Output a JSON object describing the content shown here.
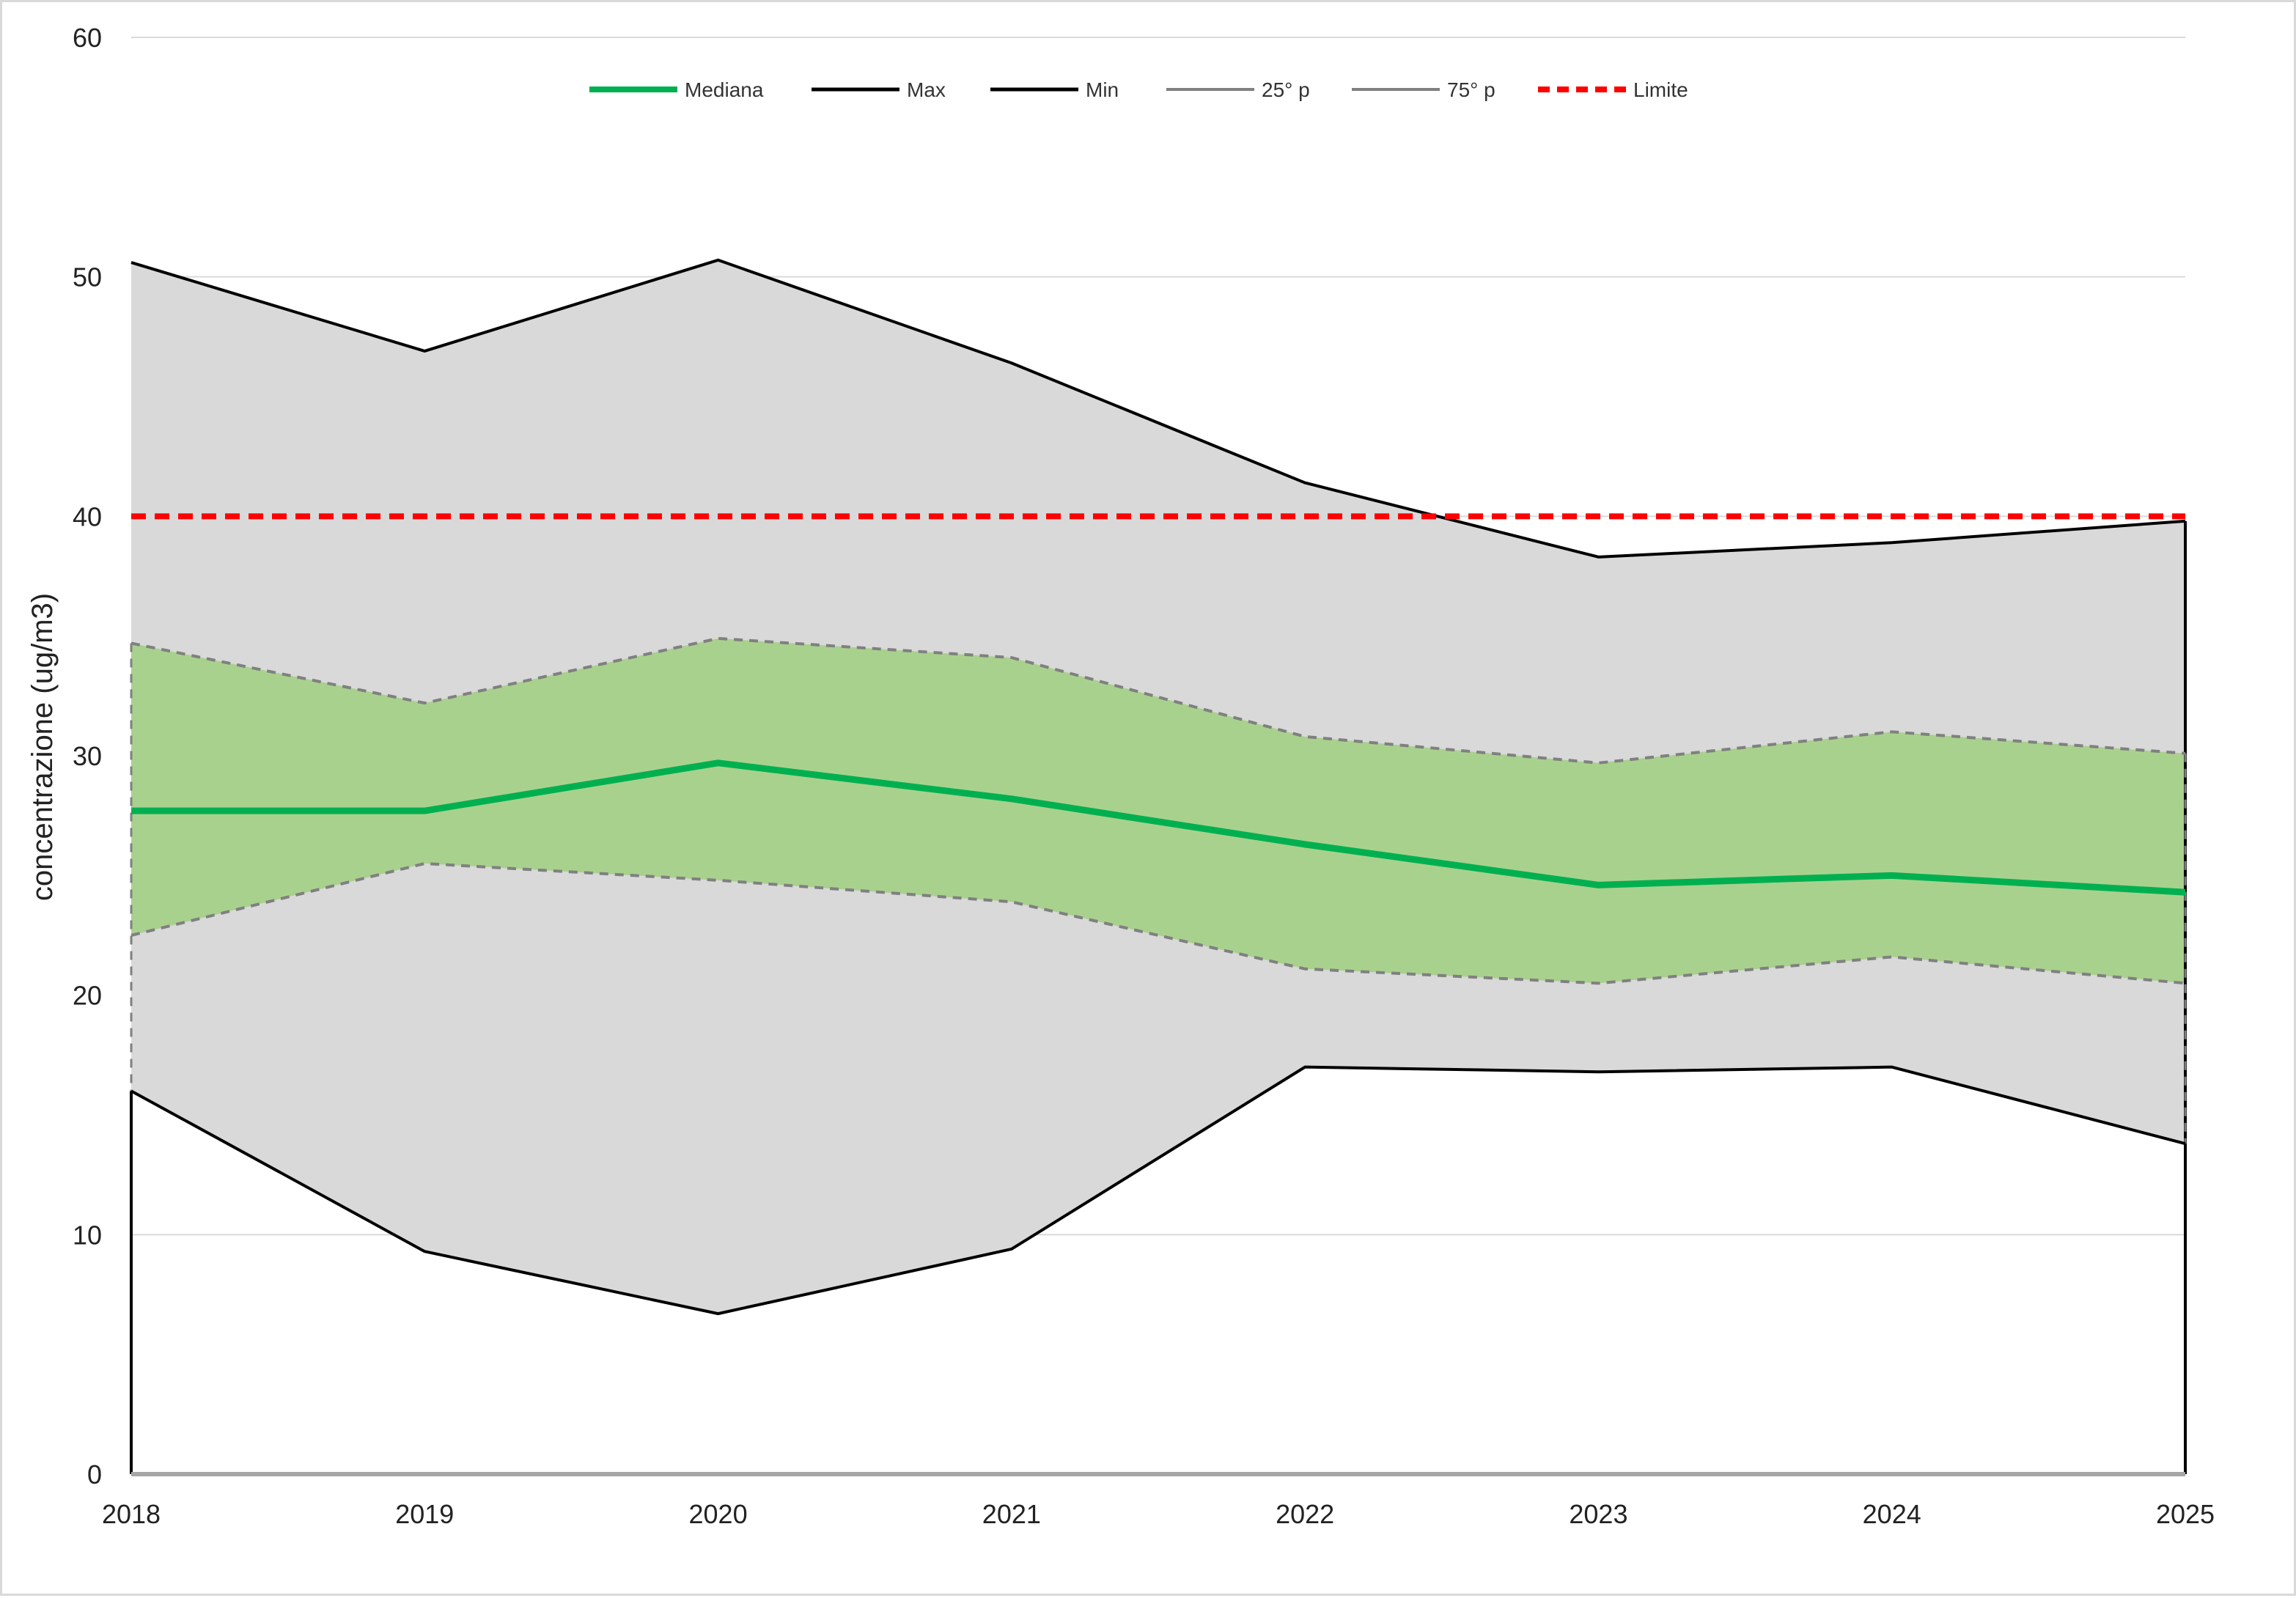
{
  "chart_data": {
    "type": "area",
    "title": "",
    "xlabel": "",
    "ylabel": "concentrazione (ug/m3)",
    "x": [
      "2018",
      "2019",
      "2020",
      "2021",
      "2022",
      "2023",
      "2024",
      "2025"
    ],
    "ylim": [
      0,
      60
    ],
    "yticks": [
      0,
      10,
      20,
      30,
      40,
      50,
      60
    ],
    "grid": "horizontal",
    "legend_position": "top-center",
    "series": [
      {
        "key": "mediana",
        "name": "Mediana",
        "color": "#00b050",
        "style": "solid-thick",
        "values": [
          27.7,
          27.7,
          29.7,
          28.2,
          26.3,
          24.6,
          25.0,
          24.3
        ]
      },
      {
        "key": "max",
        "name": "Max",
        "color": "#000000",
        "style": "solid",
        "values": [
          50.6,
          46.9,
          50.7,
          46.4,
          41.4,
          38.3,
          38.9,
          39.8
        ]
      },
      {
        "key": "min",
        "name": "Min",
        "color": "#000000",
        "style": "solid",
        "values": [
          16.0,
          9.3,
          6.7,
          9.4,
          17.0,
          16.8,
          17.0,
          13.8
        ]
      },
      {
        "key": "p25",
        "name": "25° p",
        "color": "#808080",
        "style": "dashed",
        "values": [
          22.5,
          25.5,
          24.8,
          23.9,
          21.1,
          20.5,
          21.6,
          20.5
        ]
      },
      {
        "key": "p75",
        "name": "75° p",
        "color": "#808080",
        "style": "dashed",
        "values": [
          34.7,
          32.2,
          34.9,
          34.1,
          30.8,
          29.7,
          31.0,
          30.1
        ]
      },
      {
        "key": "limite",
        "name": "Limite",
        "color": "#ff0000",
        "style": "dashed-thick",
        "values": [
          40,
          40,
          40,
          40,
          40,
          40,
          40,
          40
        ]
      }
    ],
    "fills": {
      "min_max": "#d9d9d9",
      "p25_p75": "#a9d18e"
    }
  }
}
